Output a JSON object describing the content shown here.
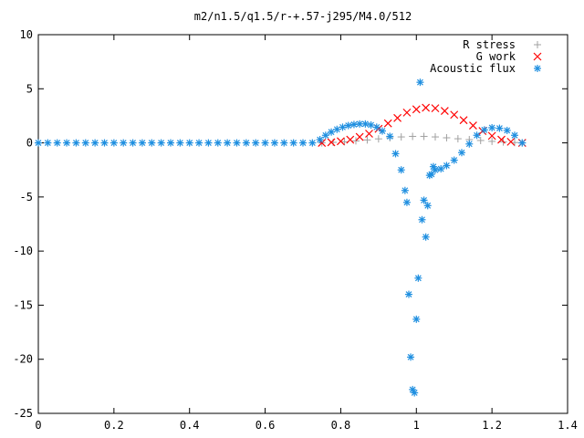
{
  "chart_data": {
    "type": "scatter",
    "title": "m2/n1.5/q1.5/r-+.57-j295/M4.0/512",
    "xlabel": "",
    "ylabel": "",
    "xlim": [
      0,
      1.4
    ],
    "ylim": [
      -25,
      10
    ],
    "xticks": [
      0,
      0.2,
      0.4,
      0.6,
      0.8,
      1,
      1.2,
      1.4
    ],
    "yticks": [
      -25,
      -20,
      -15,
      -10,
      -5,
      0,
      5,
      10
    ],
    "xtick_labels": [
      "0",
      "0.2",
      "0.4",
      "0.6",
      "0.8",
      "1",
      "1.2",
      "1.4"
    ],
    "ytick_labels": [
      "-25",
      "-20",
      "-15",
      "-10",
      "-5",
      "0",
      "5",
      "10"
    ],
    "grid": false,
    "legend_position": "top-right",
    "series": [
      {
        "name": "R stress",
        "marker": "plus",
        "color": "#a0a0a0",
        "x": [
          0.75,
          0.78,
          0.81,
          0.84,
          0.87,
          0.9,
          0.93,
          0.96,
          0.99,
          1.02,
          1.05,
          1.08,
          1.11,
          1.14,
          1.17,
          1.2,
          1.23,
          1.26,
          1.28
        ],
        "y": [
          0.0,
          0.05,
          0.1,
          0.18,
          0.27,
          0.37,
          0.47,
          0.55,
          0.6,
          0.6,
          0.55,
          0.47,
          0.38,
          0.3,
          0.22,
          0.14,
          0.08,
          0.03,
          0.0
        ]
      },
      {
        "name": "G work",
        "marker": "cross",
        "color": "#ff0000",
        "x": [
          0.75,
          0.775,
          0.8,
          0.825,
          0.85,
          0.875,
          0.9,
          0.925,
          0.95,
          0.975,
          1.0,
          1.025,
          1.05,
          1.075,
          1.1,
          1.125,
          1.15,
          1.175,
          1.2,
          1.225,
          1.25,
          1.28
        ],
        "y": [
          0.0,
          0.05,
          0.15,
          0.3,
          0.55,
          0.85,
          1.3,
          1.8,
          2.3,
          2.8,
          3.1,
          3.25,
          3.2,
          2.95,
          2.6,
          2.1,
          1.6,
          1.1,
          0.65,
          0.3,
          0.1,
          0.0
        ]
      },
      {
        "name": "Acoustic flux",
        "marker": "star",
        "color": "#1f8fe0",
        "x": [
          0.0,
          0.025,
          0.05,
          0.075,
          0.1,
          0.125,
          0.15,
          0.175,
          0.2,
          0.225,
          0.25,
          0.275,
          0.3,
          0.325,
          0.35,
          0.375,
          0.4,
          0.425,
          0.45,
          0.475,
          0.5,
          0.525,
          0.55,
          0.575,
          0.6,
          0.625,
          0.65,
          0.675,
          0.7,
          0.725,
          0.745,
          0.76,
          0.775,
          0.79,
          0.805,
          0.82,
          0.835,
          0.85,
          0.865,
          0.88,
          0.895,
          0.91,
          0.93,
          0.945,
          0.96,
          0.97,
          0.975,
          0.98,
          0.985,
          0.99,
          0.995,
          1.0,
          1.005,
          1.01,
          1.015,
          1.02,
          1.025,
          1.03,
          1.035,
          1.04,
          1.045,
          1.05,
          1.065,
          1.08,
          1.1,
          1.12,
          1.14,
          1.16,
          1.18,
          1.2,
          1.22,
          1.24,
          1.26,
          1.28
        ],
        "y": [
          0.0,
          0.0,
          0.0,
          0.0,
          0.0,
          0.0,
          0.0,
          0.0,
          0.0,
          0.0,
          0.0,
          0.0,
          0.0,
          0.0,
          0.0,
          0.0,
          0.0,
          0.0,
          0.0,
          0.0,
          0.0,
          0.0,
          0.0,
          0.0,
          0.0,
          0.0,
          0.0,
          0.0,
          0.0,
          0.0,
          0.3,
          0.7,
          1.0,
          1.25,
          1.45,
          1.6,
          1.7,
          1.75,
          1.75,
          1.65,
          1.45,
          1.1,
          0.6,
          -1.0,
          -2.5,
          -4.4,
          -5.5,
          -14.0,
          -19.8,
          -22.8,
          -23.1,
          -16.3,
          -12.5,
          5.6,
          -7.1,
          -5.3,
          -8.7,
          -5.8,
          -3.0,
          -2.9,
          -2.2,
          -2.5,
          -2.4,
          -2.1,
          -1.6,
          -0.9,
          -0.1,
          0.7,
          1.2,
          1.4,
          1.35,
          1.15,
          0.7,
          0.0
        ]
      }
    ]
  }
}
